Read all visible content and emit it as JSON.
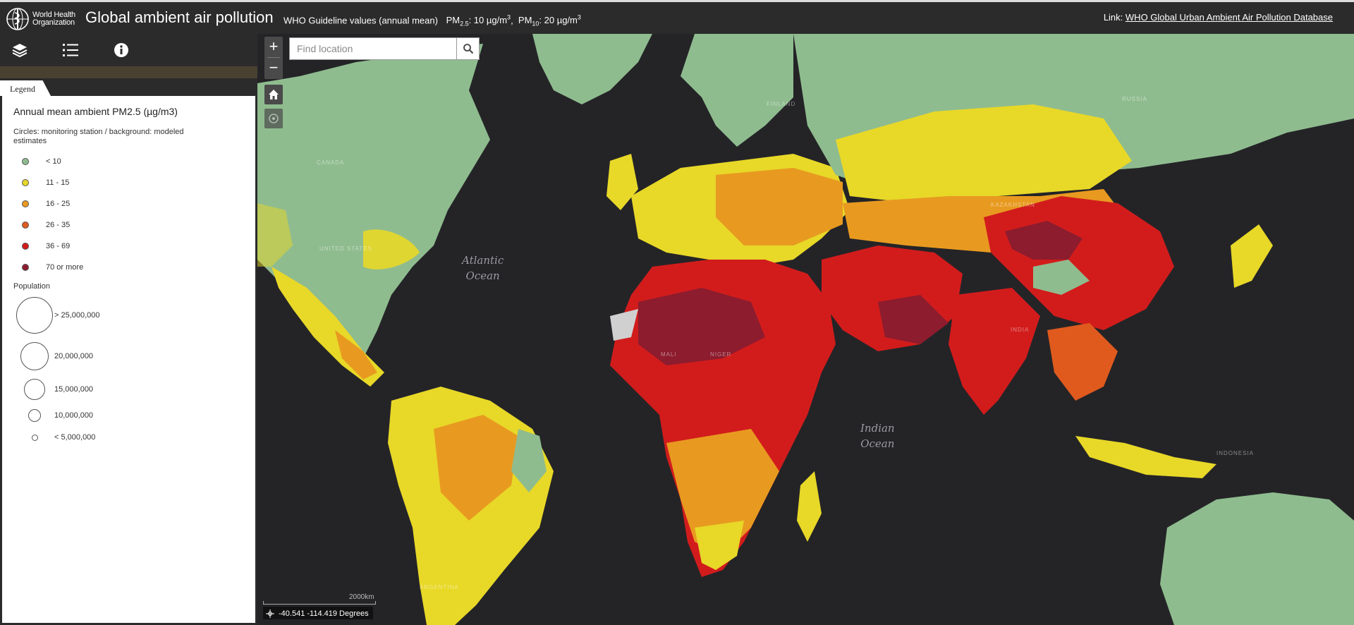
{
  "header": {
    "logo_line1": "World Health",
    "logo_line2": "Organization",
    "title": "Global ambient air pollution",
    "guideline_label": "WHO Guideline values (annual mean)",
    "pm25_prefix": "PM",
    "pm25_sub": "2.5",
    "pm25_value": ": 10 µg/m",
    "pm10_prefix": "PM",
    "pm10_sub": "10",
    "pm10_value": ": 20 µg/m",
    "unit_sup": "3",
    "link_label": "Link:",
    "link_text": "WHO Global Urban Ambient Air Pollution Database"
  },
  "toolbar": {
    "icons": [
      "layers-icon",
      "list-icon",
      "info-icon"
    ]
  },
  "legend": {
    "tab": "Legend",
    "title": "Annual mean ambient PM2.5 (µg/m3)",
    "subtitle": "Circles: monitoring station / background: modeled estimates",
    "classes": [
      {
        "label": "< 10",
        "color": "#8fbc8f"
      },
      {
        "label": "11 - 15",
        "color": "#e8d828"
      },
      {
        "label": "16 - 25",
        "color": "#e89a20"
      },
      {
        "label": "26 - 35",
        "color": "#e05a1e"
      },
      {
        "label": "36 - 69",
        "color": "#d21c1c"
      },
      {
        "label": "70 or more",
        "color": "#8c1c2e"
      }
    ],
    "population_title": "Population",
    "population": [
      {
        "label": "> 25,000,000"
      },
      {
        "label": "20,000,000"
      },
      {
        "label": "15,000,000"
      },
      {
        "label": "10,000,000"
      },
      {
        "label": "< 5,000,000"
      }
    ]
  },
  "map": {
    "search_placeholder": "Find location",
    "zoom_in": "+",
    "zoom_out": "−",
    "oceans": [
      "Atlantic\nOcean",
      "Indian\nOcean"
    ],
    "country_labels": [
      "CANADA",
      "UNITED STATES",
      "RUSSIA",
      "FINLAND",
      "INDONESIA",
      "INDIA",
      "MALI",
      "NIGER",
      "ARGENTINA",
      "KAZAKHSTAN"
    ],
    "scale": "2000km",
    "coordinates": "-40.541 -114.419 Degrees",
    "colors": {
      "ocean": "#242427",
      "lt10": "#8fbc8f",
      "c11_15": "#e8d828",
      "c16_25": "#e89a20",
      "c26_35": "#e05a1e",
      "c36_69": "#d21c1c",
      "c70": "#8c1c2e",
      "nodata": "#d0d0d0"
    }
  }
}
